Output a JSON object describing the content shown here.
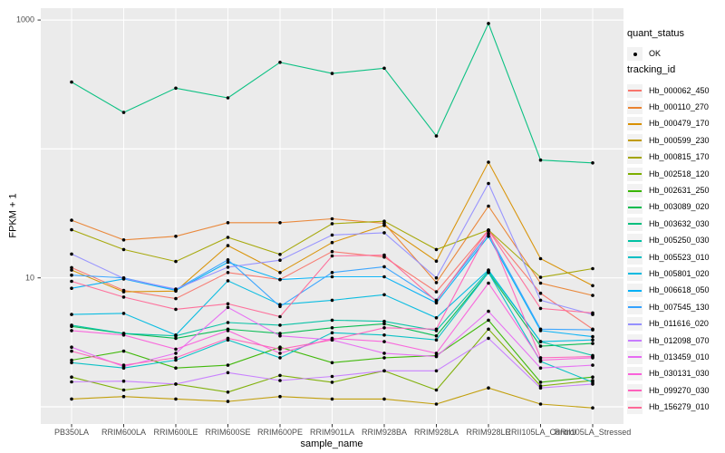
{
  "chart_data": {
    "type": "line",
    "title": "",
    "xlabel": "sample_name",
    "ylabel": "FPKM + 1",
    "y_scale": "log10",
    "y_ticks": [
      {
        "label": "10",
        "value": 10
      },
      {
        "label": "1000",
        "value": 1000
      }
    ],
    "y_gridline_values": [
      1,
      10,
      100,
      1000
    ],
    "point_color": "#000000",
    "categories": [
      "PB350LA",
      "RRIM600LA",
      "RRIM600LE",
      "RRIM600SE",
      "RRIM600PE",
      "RRIM901LA",
      "RRIM928BA",
      "RRIM928LA",
      "RRIM928LE",
      "RRII105LA_Control",
      "RRII105LA_Stressed"
    ],
    "series": [
      {
        "name": "Hb_000062_450",
        "color": "#F8766D",
        "values": [
          12,
          8,
          6.9,
          11,
          9.7,
          16,
          14.5,
          7.8,
          23.5,
          7.6,
          4
        ]
      },
      {
        "name": "Hb_000110_270",
        "color": "#EA8331",
        "values": [
          28,
          19.7,
          21,
          26.8,
          26.8,
          28.7,
          26.5,
          9.2,
          36,
          9.1,
          7.3
        ]
      },
      {
        "name": "Hb_000479_170",
        "color": "#D89000",
        "values": [
          11.5,
          7.8,
          7.9,
          17.8,
          11,
          18.8,
          25.5,
          13.5,
          79,
          14.1,
          8.7
        ]
      },
      {
        "name": "Hb_000599_230",
        "color": "#C09B00",
        "values": [
          1.15,
          1.2,
          1.15,
          1.1,
          1.2,
          1.15,
          1.15,
          1.05,
          1.4,
          1.05,
          0.98
        ]
      },
      {
        "name": "Hb_000815_170",
        "color": "#A3A500",
        "values": [
          23.6,
          16.6,
          13.4,
          20.6,
          15.2,
          26.3,
          27.5,
          16.6,
          23.5,
          10.1,
          11.8
        ]
      },
      {
        "name": "Hb_002518_120",
        "color": "#7CAE00",
        "values": [
          1.7,
          1.35,
          1.5,
          1.3,
          1.75,
          1.55,
          1.9,
          1.35,
          4,
          1.45,
          1.6
        ]
      },
      {
        "name": "Hb_002631_250",
        "color": "#39B600",
        "values": [
          2.3,
          2.7,
          2,
          2.1,
          2.9,
          2.2,
          2.4,
          2.5,
          4.7,
          1.55,
          1.7
        ]
      },
      {
        "name": "Hb_003089_020",
        "color": "#00BB4E",
        "values": [
          4.2,
          3.7,
          3.4,
          4,
          3.7,
          4.1,
          4.4,
          3.55,
          11,
          2.95,
          3.1
        ]
      },
      {
        "name": "Hb_003632_030",
        "color": "#00BF7D",
        "values": [
          330,
          192,
          296,
          249,
          470,
          385,
          423,
          126,
          940,
          82,
          78
        ]
      },
      {
        "name": "Hb_005250_030",
        "color": "#00C1A3",
        "values": [
          4.3,
          3.7,
          3.55,
          4.5,
          4.3,
          4.7,
          4.6,
          3.9,
          11.3,
          3.2,
          2.5
        ]
      },
      {
        "name": "Hb_005523_010",
        "color": "#00BFC4",
        "values": [
          2.2,
          2,
          2.3,
          3.3,
          2.4,
          3.75,
          3.6,
          3.3,
          11,
          2.25,
          1.55
        ]
      },
      {
        "name": "Hb_005801_020",
        "color": "#00BAE0",
        "values": [
          5.2,
          5.3,
          3.6,
          9.5,
          6.2,
          6.7,
          7.4,
          4.9,
          11.5,
          3.2,
          3.3
        ]
      },
      {
        "name": "Hb_006618_050",
        "color": "#00B0F6",
        "values": [
          8.3,
          9.8,
          8,
          13.2,
          9.7,
          10.2,
          10.2,
          6.4,
          21,
          3.9,
          3.5
        ]
      },
      {
        "name": "Hb_007545_130",
        "color": "#35A2FF",
        "values": [
          10.5,
          10,
          8.1,
          13.8,
          6,
          11,
          12.2,
          6.7,
          22,
          4,
          3.95
        ]
      },
      {
        "name": "Hb_011616_020",
        "color": "#9590FF",
        "values": [
          15.3,
          9.9,
          8.2,
          12.1,
          13.7,
          21.5,
          22.4,
          10,
          54,
          6.7,
          5.2
        ]
      },
      {
        "name": "Hb_012098_070",
        "color": "#C77CFF",
        "values": [
          1.56,
          1.58,
          1.5,
          1.84,
          1.6,
          1.72,
          1.9,
          1.9,
          3.4,
          1.4,
          1.5
        ]
      },
      {
        "name": "Hb_013459_010",
        "color": "#E76BF3",
        "values": [
          2.9,
          2.05,
          2.6,
          5.9,
          3.55,
          3.3,
          2.6,
          2.45,
          5.5,
          2,
          2.1
        ]
      },
      {
        "name": "Hb_030131_030",
        "color": "#FA62DB",
        "values": [
          3.9,
          3.6,
          2.8,
          3.9,
          2.6,
          3.4,
          3.2,
          2.6,
          9.1,
          2.3,
          2.4
        ]
      },
      {
        "name": "Hb_099270_030",
        "color": "#FF62BC",
        "values": [
          2.7,
          2.1,
          2.4,
          3.4,
          2.8,
          3.3,
          4.1,
          4,
          23,
          2.4,
          2.45
        ]
      },
      {
        "name": "Hb_156279_010",
        "color": "#FF6A98",
        "values": [
          9.4,
          7.1,
          5.7,
          6.3,
          5,
          14.8,
          15,
          6.6,
          23.5,
          5.8,
          5.35
        ]
      }
    ],
    "legend": {
      "quant_status": {
        "title": "quant_status",
        "items": [
          {
            "label": "OK",
            "glyph": "point-icon"
          }
        ]
      },
      "tracking_id": {
        "title": "tracking_id"
      }
    },
    "panel_background": "#EBEBEB",
    "gridline_color": "#FFFFFF"
  }
}
